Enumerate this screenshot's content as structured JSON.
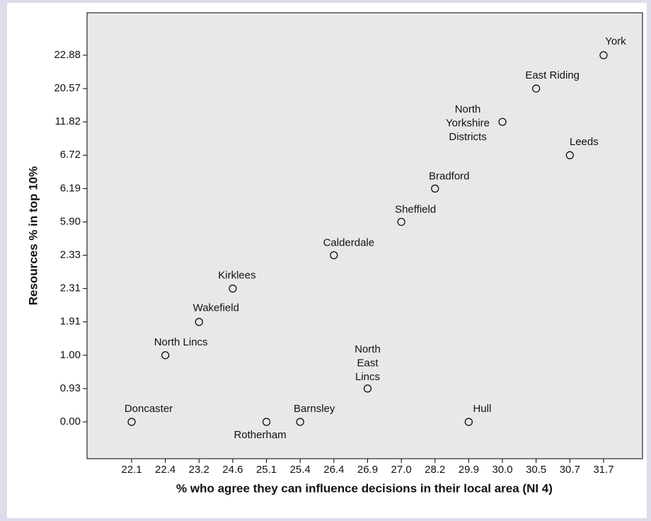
{
  "chart_data": {
    "type": "scatter",
    "x_label": "% who agree they can influence decisions in their local area (NI 4)",
    "y_label": "Resources % in top 10%",
    "xticks": [
      "22.1",
      "22.4",
      "23.2",
      "24.6",
      "25.1",
      "25.4",
      "26.4",
      "26.9",
      "27.0",
      "28.2",
      "29.9",
      "30.0",
      "30.5",
      "30.7",
      "31.7"
    ],
    "yticks": [
      "0.00",
      "0.93",
      "1.00",
      "1.91",
      "2.31",
      "2.33",
      "5.90",
      "6.19",
      "6.72",
      "11.82",
      "20.57",
      "22.88"
    ],
    "points": [
      {
        "name": "Doncaster",
        "x": 22.1,
        "y": 0
      },
      {
        "name": "North Lincs",
        "x": 22.4,
        "y": 1
      },
      {
        "name": "Wakefield",
        "x": 23.2,
        "y": 1.91
      },
      {
        "name": "Kirklees",
        "x": 24.6,
        "y": 2.31
      },
      {
        "name": "Rotherham",
        "x": 25.1,
        "y": 0
      },
      {
        "name": "Barnsley",
        "x": 25.4,
        "y": 0
      },
      {
        "name": "Calderdale",
        "x": 26.4,
        "y": 2.33
      },
      {
        "name": "North East Lincs",
        "x": 26.9,
        "y": 0.93
      },
      {
        "name": "Sheffield",
        "x": 27.0,
        "y": 5.9
      },
      {
        "name": "Bradford",
        "x": 28.2,
        "y": 6.19
      },
      {
        "name": "Hull",
        "x": 29.9,
        "y": 0
      },
      {
        "name": "North Yorkshire Districts",
        "x": 30.0,
        "y": 11.82
      },
      {
        "name": "East Riding",
        "x": 30.5,
        "y": 20.57
      },
      {
        "name": "Leeds",
        "x": 30.7,
        "y": 6.72
      },
      {
        "name": "York",
        "x": 31.7,
        "y": 22.88
      }
    ]
  }
}
